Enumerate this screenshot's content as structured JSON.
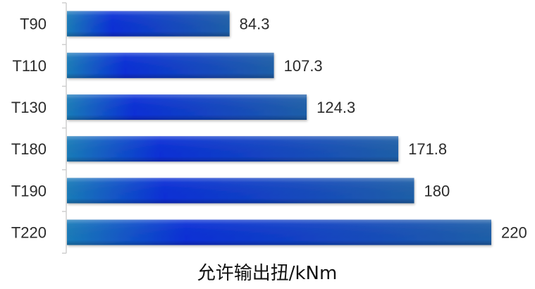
{
  "chart_data": {
    "type": "bar",
    "orientation": "horizontal",
    "categories": [
      "T90",
      "T110",
      "T130",
      "T180",
      "T190",
      "T220"
    ],
    "values": [
      84.3,
      107.3,
      124.3,
      171.8,
      180,
      220
    ],
    "value_labels": [
      "84.3",
      "107.3",
      "124.3",
      "171.8",
      "180",
      "220"
    ],
    "title": "",
    "xlabel": "允许输出扭/kNm",
    "ylabel": "",
    "xlim": [
      0,
      220
    ],
    "grid": false,
    "legend": "none",
    "colors": {
      "bar_edge": "#1a7bb8",
      "bar_mid": "#0a2fd6",
      "bar_end": "#1f5fa8",
      "axis": "#cfcfcf"
    }
  }
}
